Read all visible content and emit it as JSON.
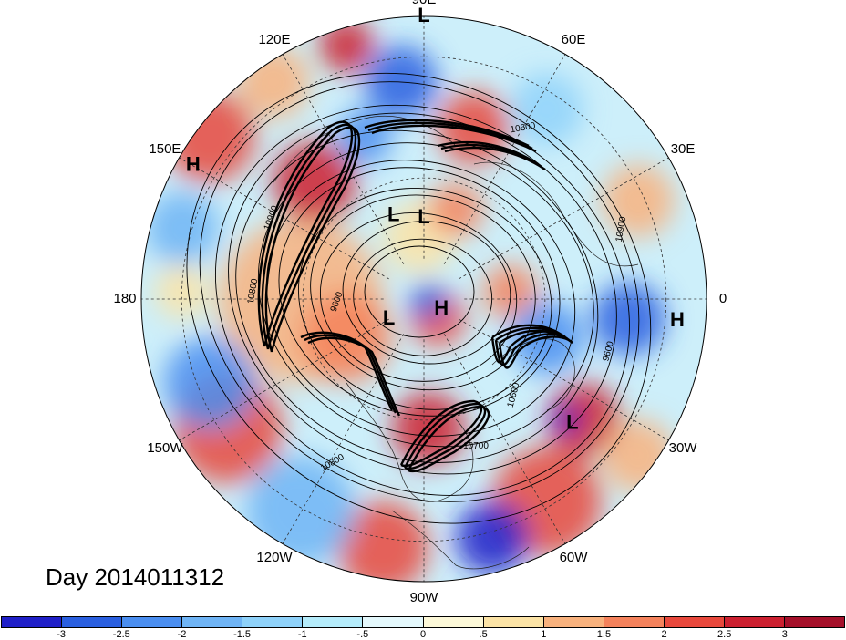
{
  "title": "Day 2014011312",
  "longitude_labels": [
    "90E",
    "60E",
    "30E",
    "0",
    "30W",
    "60W",
    "90W",
    "120W",
    "150W",
    "180",
    "150E",
    "120E"
  ],
  "pressure_centers": [
    {
      "type": "L",
      "lon_deg": 90,
      "lat_deg": 20
    },
    {
      "type": "L",
      "lon_deg": 110,
      "lat_deg": 68
    },
    {
      "type": "L",
      "lon_deg": 90,
      "lat_deg": 70
    },
    {
      "type": "H",
      "lon_deg": 150,
      "lat_deg": 24
    },
    {
      "type": "H",
      "lon_deg": -30,
      "lat_deg": 85
    },
    {
      "type": "L",
      "lon_deg": -150,
      "lat_deg": 80
    },
    {
      "type": "H",
      "lon_deg": -5,
      "lat_deg": 27
    },
    {
      "type": "L",
      "lon_deg": -40,
      "lat_deg": 42
    }
  ],
  "contour_labels": [
    "10900",
    "9600",
    "10800",
    "10700",
    "10600",
    "10900",
    "10600",
    "9600",
    "10800"
  ],
  "colorbar": {
    "colors": [
      "#1f1fc8",
      "#2a5fe0",
      "#4a8ef0",
      "#6fb4f5",
      "#8fd2fa",
      "#b5ecfb",
      "#e4f8fc",
      "#fcf8d8",
      "#fbe3a6",
      "#f8b27e",
      "#f4825c",
      "#e8483c",
      "#cc2030",
      "#a5102a"
    ],
    "ticks": [
      "-3",
      "-2.5",
      "-2",
      "-1.5",
      "-1",
      "-.5",
      "0",
      ".5",
      "1",
      "1.5",
      "2",
      "2.5",
      "3"
    ]
  }
}
